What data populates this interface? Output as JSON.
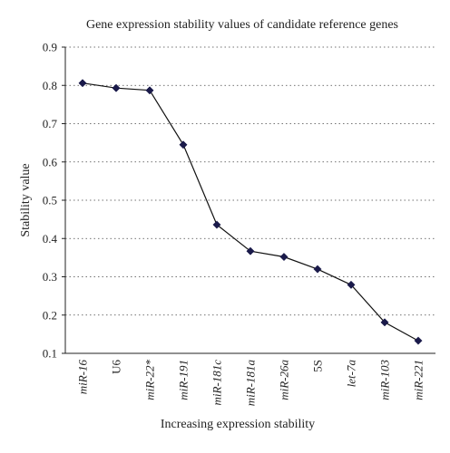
{
  "chart_data": {
    "type": "line",
    "title": "Gene expression stability values of candidate reference genes",
    "xlabel": "Increasing expression stability",
    "ylabel": "Stability value",
    "ylim": [
      0.1,
      0.9
    ],
    "yticks": [
      "0.9",
      "0.8",
      "0.7",
      "0.6",
      "0.5",
      "0.4",
      "0.3",
      "0.2",
      "0.1"
    ],
    "grid": "horizontal",
    "categories": [
      "miR-16",
      "U6",
      "miR-22*",
      "miR-191",
      "miR-181c",
      "miR-181a",
      "miR-26a",
      "5S",
      "let-7a",
      "miR-103",
      "miR-221"
    ],
    "italic_categories": [
      true,
      false,
      true,
      true,
      true,
      true,
      true,
      false,
      true,
      true,
      true
    ],
    "series": [
      {
        "values": [
          0.806,
          0.793,
          0.787,
          0.645,
          0.436,
          0.367,
          0.352,
          0.32,
          0.279,
          0.181,
          0.133
        ],
        "marker": "diamond",
        "color": "#1a1a4a"
      }
    ]
  }
}
